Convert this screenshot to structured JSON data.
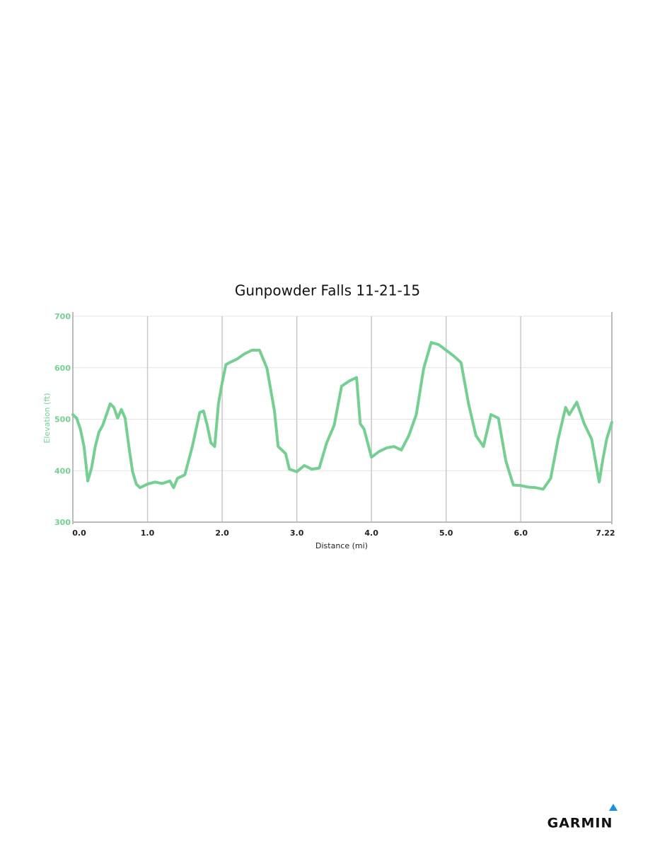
{
  "chart_data": {
    "type": "line",
    "title": "Gunpowder Falls 11-21-15",
    "x_label": "Distance (mi)",
    "y_label": "Elevation (ft)",
    "x": [
      0,
      0.05,
      0.1,
      0.15,
      0.2,
      0.25,
      0.3,
      0.35,
      0.4,
      0.45,
      0.5,
      0.55,
      0.6,
      0.65,
      0.7,
      0.75,
      0.8,
      0.85,
      0.9,
      1.0,
      1.1,
      1.2,
      1.3,
      1.35,
      1.4,
      1.5,
      1.6,
      1.7,
      1.75,
      1.8,
      1.85,
      1.9,
      1.95,
      2.0,
      2.05,
      2.1,
      2.2,
      2.3,
      2.4,
      2.5,
      2.6,
      2.7,
      2.75,
      2.85,
      2.9,
      3.0,
      3.1,
      3.2,
      3.3,
      3.4,
      3.5,
      3.6,
      3.7,
      3.8,
      3.85,
      3.9,
      4.0,
      4.1,
      4.2,
      4.3,
      4.4,
      4.5,
      4.6,
      4.7,
      4.8,
      4.9,
      5.0,
      5.1,
      5.2,
      5.3,
      5.4,
      5.5,
      5.6,
      5.7,
      5.8,
      5.9,
      6.0,
      6.1,
      6.2,
      6.3,
      6.4,
      6.5,
      6.6,
      6.65,
      6.75,
      6.85,
      6.95,
      7.05,
      7.1,
      7.15,
      7.22
    ],
    "values": [
      509,
      502,
      481,
      447,
      380,
      405,
      447,
      475,
      488,
      509,
      530,
      523,
      502,
      519,
      502,
      447,
      398,
      374,
      367,
      374,
      378,
      375,
      380,
      367,
      385,
      392,
      447,
      513,
      516,
      488,
      454,
      447,
      530,
      571,
      606,
      610,
      617,
      627,
      634,
      634,
      599,
      516,
      447,
      433,
      403,
      398,
      410,
      403,
      405,
      454,
      488,
      564,
      574,
      581,
      491,
      481,
      426,
      437,
      444,
      447,
      440,
      468,
      509,
      599,
      649,
      645,
      634,
      623,
      610,
      530,
      468,
      447,
      509,
      502,
      419,
      372,
      371,
      368,
      367,
      364,
      385,
      461,
      523,
      509,
      533,
      491,
      461,
      378,
      422,
      461,
      494
    ],
    "color": "#74cf91",
    "xlim": [
      0,
      7.22
    ],
    "ylim": [
      300,
      700
    ],
    "xticks": [
      {
        "value": 0,
        "label": "0.0"
      },
      {
        "value": 1,
        "label": "1.0"
      },
      {
        "value": 2,
        "label": "2.0"
      },
      {
        "value": 3,
        "label": "3.0"
      },
      {
        "value": 4,
        "label": "4.0"
      },
      {
        "value": 5,
        "label": "5.0"
      },
      {
        "value": 6,
        "label": "6.0"
      },
      7.22
    ],
    "yticks": [
      300,
      400,
      500,
      600,
      700
    ],
    "grid": true
  },
  "brand": "GARMIN"
}
